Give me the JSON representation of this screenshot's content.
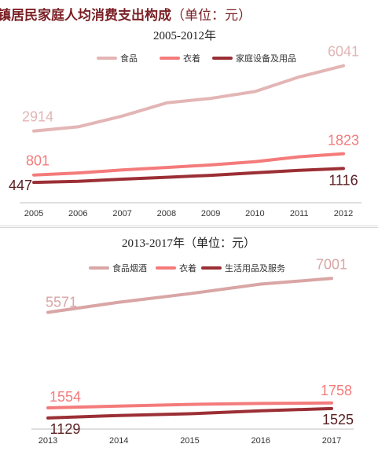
{
  "colors": {
    "food": "#e3b5b5",
    "clothing": "#f47b7b",
    "household": "#9b2f35",
    "axis": "#bfbfbf",
    "title": "#7a1f24"
  },
  "chart_data": [
    {
      "type": "line",
      "title": "城镇居民家庭人均消费支出构成",
      "title_suffix": "（单位：元）",
      "subtitle": "2005-2012年",
      "categories": [
        "2005",
        "2006",
        "2007",
        "2008",
        "2009",
        "2010",
        "2011",
        "2012"
      ],
      "legend_position": "top",
      "grid": false,
      "ylim": [
        0,
        6400
      ],
      "series": [
        {
          "name": "食品",
          "color": "#e3b5b5",
          "values": [
            2914,
            3111,
            3628,
            4260,
            4478,
            4805,
            5506,
            6041
          ]
        },
        {
          "name": "衣着",
          "color": "#f47b7b",
          "values": [
            801,
            902,
            1042,
            1166,
            1284,
            1444,
            1675,
            1823
          ]
        },
        {
          "name": "家庭设备及用品",
          "color": "#9b2f35",
          "values": [
            447,
            498,
            601,
            692,
            787,
            908,
            1023,
            1116
          ]
        }
      ],
      "data_labels": [
        {
          "series": 0,
          "index": 0,
          "text": "2914"
        },
        {
          "series": 0,
          "index": 7,
          "text": "6041"
        },
        {
          "series": 1,
          "index": 0,
          "text": "801"
        },
        {
          "series": 1,
          "index": 7,
          "text": "1823"
        },
        {
          "series": 2,
          "index": 0,
          "text": "447"
        },
        {
          "series": 2,
          "index": 7,
          "text": "1116"
        }
      ]
    },
    {
      "type": "line",
      "title": "2013-2017年（单位：元）",
      "categories": [
        "2013",
        "2014",
        "2015",
        "2016",
        "2017"
      ],
      "legend_position": "top",
      "grid": false,
      "ylim": [
        0,
        8000
      ],
      "series": [
        {
          "name": "食品烟酒",
          "color": "#d9a5a5",
          "values": [
            5571,
            6000,
            6360,
            6762,
            7001
          ]
        },
        {
          "name": "衣着",
          "color": "#f47b7b",
          "values": [
            1554,
            1627,
            1701,
            1739,
            1758
          ]
        },
        {
          "name": "生活用品及服务",
          "color": "#9b2f35",
          "values": [
            1129,
            1233,
            1306,
            1427,
            1525
          ]
        }
      ],
      "data_labels": [
        {
          "series": 0,
          "index": 0,
          "text": "5571"
        },
        {
          "series": 0,
          "index": 4,
          "text": "7001"
        },
        {
          "series": 1,
          "index": 0,
          "text": "1554"
        },
        {
          "series": 1,
          "index": 4,
          "text": "1758"
        },
        {
          "series": 2,
          "index": 0,
          "text": "1129"
        },
        {
          "series": 2,
          "index": 4,
          "text": "1525"
        }
      ]
    }
  ]
}
